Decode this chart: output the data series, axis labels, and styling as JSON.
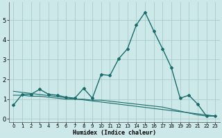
{
  "xlabel": "Humidex (Indice chaleur)",
  "background_color": "#cce8e8",
  "grid_color": "#aacccc",
  "line_color": "#1a6b6b",
  "xlim": [
    -0.5,
    23.5
  ],
  "ylim": [
    -0.15,
    5.9
  ],
  "xticks": [
    0,
    1,
    2,
    3,
    4,
    5,
    6,
    7,
    8,
    9,
    10,
    11,
    12,
    13,
    14,
    15,
    16,
    17,
    18,
    19,
    20,
    21,
    22,
    23
  ],
  "yticks": [
    0,
    1,
    2,
    3,
    4,
    5
  ],
  "series": [
    {
      "x": [
        0,
        1,
        2,
        3,
        4,
        5,
        6,
        7,
        8,
        9,
        10,
        11,
        12,
        13,
        14,
        15,
        16,
        17,
        18,
        19,
        20,
        21,
        22,
        23
      ],
      "y": [
        0.7,
        1.25,
        1.25,
        1.5,
        1.25,
        1.2,
        1.1,
        1.05,
        1.55,
        1.05,
        2.25,
        2.2,
        3.05,
        3.55,
        4.75,
        5.4,
        4.45,
        3.55,
        2.6,
        1.05,
        1.2,
        0.75,
        0.15,
        0.15
      ]
    },
    {
      "x": [
        0,
        1,
        2,
        3,
        4,
        5,
        6,
        7,
        8,
        9,
        10,
        11,
        12,
        13,
        14,
        15,
        16,
        17,
        18,
        19,
        20,
        21,
        22,
        23
      ],
      "y": [
        1.2,
        1.2,
        1.15,
        1.15,
        1.1,
        1.05,
        1.0,
        1.0,
        1.0,
        0.95,
        0.95,
        0.9,
        0.85,
        0.8,
        0.75,
        0.7,
        0.65,
        0.6,
        0.5,
        0.4,
        0.3,
        0.2,
        0.15,
        0.15
      ]
    },
    {
      "x": [
        0,
        23
      ],
      "y": [
        1.4,
        0.15
      ]
    }
  ]
}
